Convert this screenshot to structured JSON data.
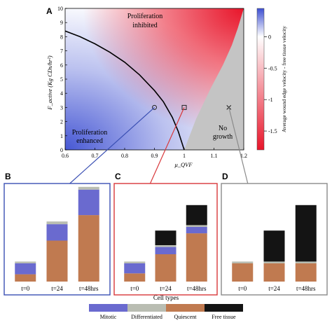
{
  "panel_labels": {
    "a": "A",
    "b": "B",
    "c": "C",
    "d": "D"
  },
  "colors": {
    "mitotic": "#6a6acf",
    "differentiated": "#b9bdb2",
    "quiescent": "#c07a50",
    "free_tissue": "#141414",
    "frame_b": "#3a4fb3",
    "frame_c": "#d8373a",
    "frame_d": "#8a8a8a",
    "no_growth_region": "#c4c4c4",
    "colorbar_max": "#3d4fd2",
    "colorbar_mid": "#ffffff",
    "colorbar_min": "#e8152a"
  },
  "chart_data": [
    {
      "type": "heatmap",
      "panel": "A",
      "xlabel": "μ_QVF",
      "ylabel": "F_active (Kg CDs/hr²)",
      "xlim": [
        0.6,
        1.2
      ],
      "ylim": [
        0,
        10
      ],
      "xticks": [
        "0.6",
        "0.7",
        "0.8",
        "0.9",
        "1",
        "1.1",
        "1.2"
      ],
      "yticks": [
        "0",
        "1",
        "2",
        "3",
        "4",
        "5",
        "6",
        "7",
        "8",
        "9",
        "10"
      ],
      "region_labels": {
        "inhibited": [
          "Proliferation",
          "inhibited"
        ],
        "enhanced": [
          "Proliferation",
          "enhanced"
        ],
        "no_growth": [
          "No",
          "growth"
        ]
      },
      "boundary_curve": {
        "x": [
          0.6,
          0.65,
          0.7,
          0.75,
          0.8,
          0.85,
          0.9,
          0.93,
          0.96,
          0.98,
          1.0
        ],
        "y": [
          8.4,
          8.0,
          7.5,
          6.9,
          6.2,
          5.3,
          4.2,
          3.4,
          2.3,
          1.3,
          0.0
        ]
      },
      "no_growth_boundary": {
        "x": [
          1.0,
          1.04,
          1.09,
          1.13,
          1.16,
          1.18,
          1.2
        ],
        "y": [
          0.0,
          2.2,
          4.4,
          6.0,
          7.4,
          8.6,
          10.0
        ]
      },
      "markers": [
        {
          "shape": "circle",
          "x": 0.9,
          "y": 3.0,
          "links_to": "B"
        },
        {
          "shape": "square",
          "x": 1.0,
          "y": 3.0,
          "links_to": "C"
        },
        {
          "shape": "cross",
          "x": 1.15,
          "y": 3.0,
          "links_to": "D"
        }
      ],
      "colorbar": {
        "label": "Average wound edge velocity - free tissue velocity",
        "range": [
          -1.8,
          0.45
        ],
        "ticks": [
          "0",
          "-0.5",
          "-1",
          "-1.5"
        ]
      }
    },
    {
      "type": "bar",
      "panel": "B",
      "categories": [
        "t=0",
        "t=24",
        "t=48hrs"
      ],
      "stack_order": [
        "free_tissue",
        "differentiated",
        "mitotic",
        "quiescent"
      ],
      "stacks": [
        {
          "free_tissue": 0,
          "differentiated": 0.02,
          "mitotic": 0.12,
          "quiescent": 0.08
        },
        {
          "free_tissue": 0,
          "differentiated": 0.03,
          "mitotic": 0.18,
          "quiescent": 0.45
        },
        {
          "free_tissue": 0,
          "differentiated": 0.03,
          "mitotic": 0.28,
          "quiescent": 0.73
        }
      ]
    },
    {
      "type": "bar",
      "panel": "C",
      "categories": [
        "t=0",
        "t=24",
        "t=48hrs"
      ],
      "stack_order": [
        "free_tissue",
        "differentiated",
        "mitotic",
        "quiescent"
      ],
      "stacks": [
        {
          "free_tissue": 0,
          "differentiated": 0.02,
          "mitotic": 0.11,
          "quiescent": 0.09
        },
        {
          "free_tissue": 0.16,
          "differentiated": 0.02,
          "mitotic": 0.08,
          "quiescent": 0.3
        },
        {
          "free_tissue": 0.22,
          "differentiated": 0.02,
          "mitotic": 0.07,
          "quiescent": 0.53
        }
      ]
    },
    {
      "type": "bar",
      "panel": "D",
      "categories": [
        "t=0",
        "t=24",
        "t=48hrs"
      ],
      "stack_order": [
        "free_tissue",
        "differentiated",
        "mitotic",
        "quiescent"
      ],
      "stacks": [
        {
          "free_tissue": 0,
          "differentiated": 0.02,
          "mitotic": 0,
          "quiescent": 0.2
        },
        {
          "free_tissue": 0.34,
          "differentiated": 0.02,
          "mitotic": 0,
          "quiescent": 0.2
        },
        {
          "free_tissue": 0.62,
          "differentiated": 0.02,
          "mitotic": 0,
          "quiescent": 0.2
        }
      ]
    }
  ],
  "legend": {
    "title": "Cell types",
    "items": [
      {
        "key": "mitotic",
        "label": "Mitotic"
      },
      {
        "key": "differentiated",
        "label": "Differentiated"
      },
      {
        "key": "quiescent",
        "label": "Quiescent"
      },
      {
        "key": "free_tissue",
        "label": "Free tissue"
      }
    ]
  }
}
